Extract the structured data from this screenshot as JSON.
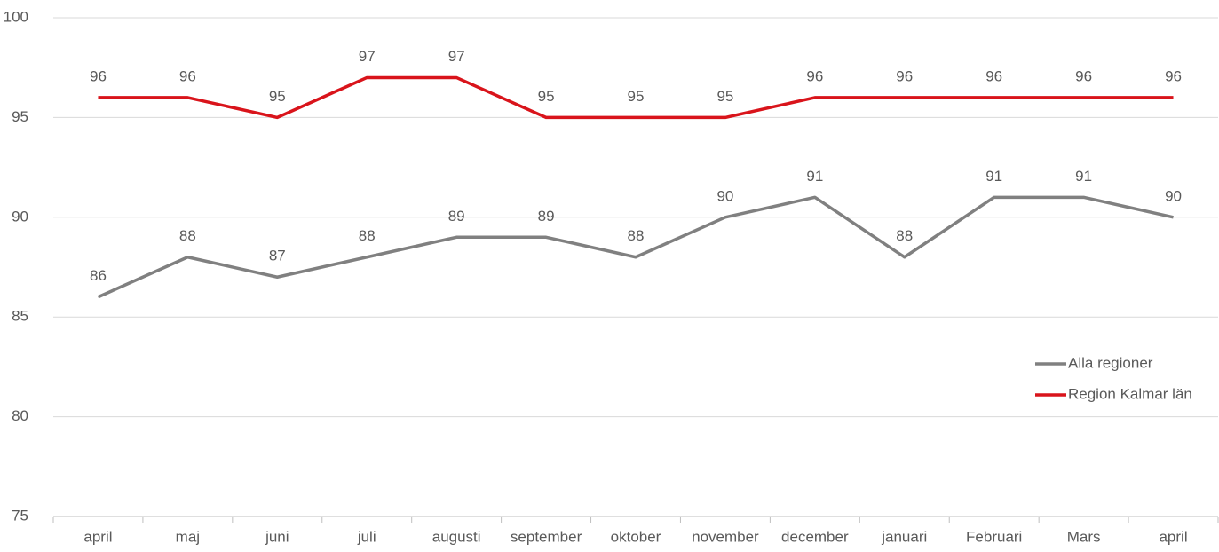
{
  "chart_data": {
    "type": "line",
    "categories": [
      "april",
      "maj",
      "juni",
      "juli",
      "augusti",
      "september",
      "oktober",
      "november",
      "december",
      "januari",
      "Februari",
      "Mars",
      "april"
    ],
    "series": [
      {
        "name": "Alla regioner",
        "color": "#808080",
        "values": [
          86,
          88,
          87,
          88,
          89,
          89,
          88,
          90,
          91,
          88,
          91,
          91,
          90
        ]
      },
      {
        "name": "Region Kalmar län",
        "color": "#d9141b",
        "values": [
          96,
          96,
          95,
          97,
          97,
          95,
          95,
          95,
          96,
          96,
          96,
          96,
          96
        ]
      }
    ],
    "ylim": [
      75,
      100
    ],
    "yticks": [
      75,
      80,
      85,
      90,
      95,
      100
    ],
    "grid": true,
    "legend": "right"
  }
}
